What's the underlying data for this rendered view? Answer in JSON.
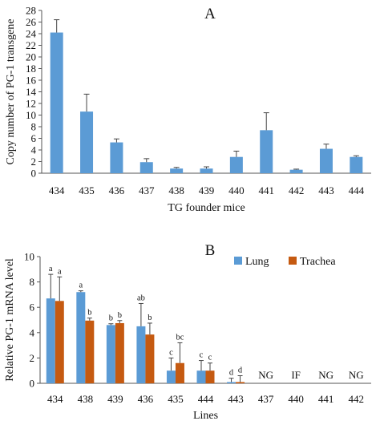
{
  "colors": {
    "lung": "#5b9bd5",
    "trachea": "#c55a11",
    "axis": "#555555",
    "error": "#444444"
  },
  "chart_data": [
    {
      "type": "bar",
      "title": "A",
      "xlabel": "TG founder mice",
      "ylabel": "Copy number of PG-1 transgene",
      "ylim": [
        0,
        28
      ],
      "yticks": [
        0,
        2,
        4,
        6,
        8,
        10,
        12,
        14,
        16,
        18,
        20,
        22,
        24,
        26,
        28
      ],
      "grid": false,
      "categories": [
        "434",
        "435",
        "436",
        "437",
        "438",
        "439",
        "440",
        "441",
        "442",
        "443",
        "444"
      ],
      "series": [
        {
          "values": [
            24.2,
            10.6,
            5.3,
            1.9,
            0.8,
            0.8,
            2.8,
            7.4,
            0.6,
            4.2,
            2.8
          ],
          "error_up": [
            2.2,
            3.0,
            0.6,
            0.6,
            0.2,
            0.3,
            1.0,
            3.0,
            0.1,
            0.8,
            0.2
          ]
        }
      ]
    },
    {
      "type": "bar",
      "title": "B",
      "xlabel": "Lines",
      "ylabel": "Relative PG-1 mRNA level",
      "ylim": [
        0,
        10
      ],
      "yticks": [
        0,
        2,
        4,
        6,
        8,
        10
      ],
      "grid": false,
      "legend_position": "top-right",
      "categories": [
        "434",
        "438",
        "439",
        "436",
        "435",
        "444",
        "443",
        "437",
        "440",
        "441",
        "442"
      ],
      "series": [
        {
          "name": "Lung",
          "values": [
            6.7,
            7.2,
            4.6,
            4.5,
            1.0,
            1.0,
            0.1,
            null,
            null,
            null,
            null
          ],
          "error_up": [
            1.9,
            0.1,
            0.1,
            1.8,
            1.0,
            0.8,
            0.3,
            null,
            null,
            null,
            null
          ],
          "letters": [
            "a",
            "a",
            "b",
            "ab",
            "c",
            "c",
            "d",
            "",
            "",
            "",
            ""
          ]
        },
        {
          "name": "Trachea",
          "values": [
            6.5,
            4.95,
            4.75,
            3.85,
            1.6,
            1.0,
            0.1,
            null,
            null,
            null,
            null
          ],
          "error_up": [
            1.9,
            0.2,
            0.2,
            0.9,
            1.6,
            0.6,
            0.5,
            null,
            null,
            null,
            null
          ],
          "letters": [
            "a",
            "b",
            "b",
            "b",
            "bc",
            "c",
            "d",
            "",
            "",
            "",
            ""
          ]
        }
      ],
      "category_notes": [
        "",
        "",
        "",
        "",
        "",
        "",
        "",
        "NG",
        "IF",
        "NG",
        "NG"
      ]
    }
  ]
}
